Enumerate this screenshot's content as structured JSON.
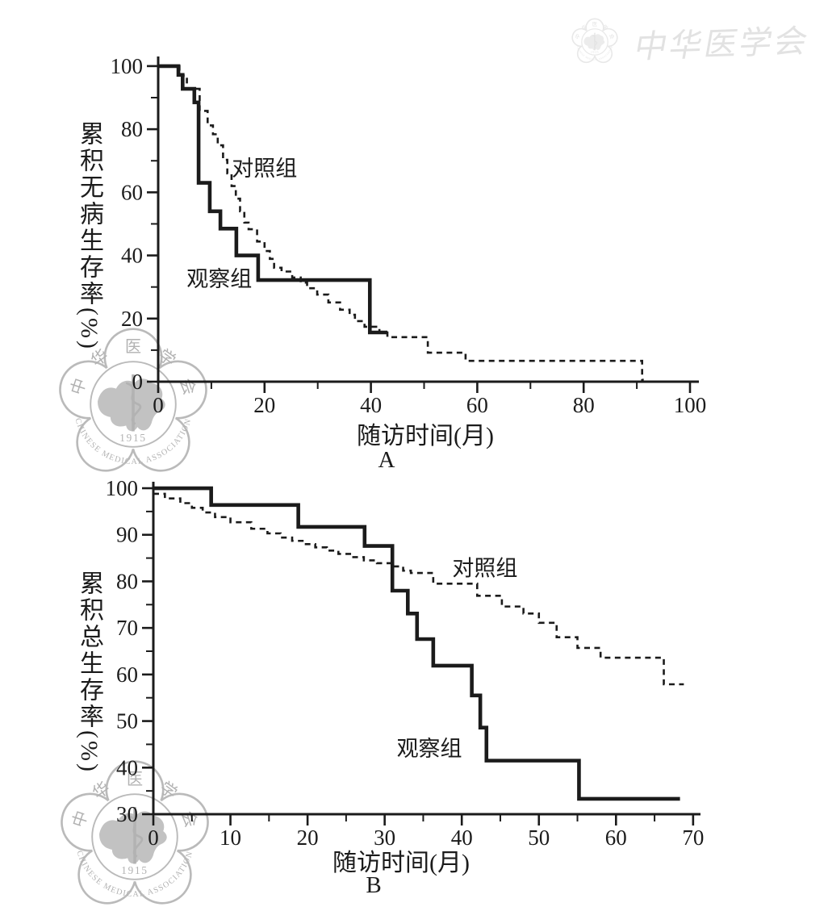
{
  "colors": {
    "ink": "#1b1b1b",
    "watermark_gray_line": "#bababa",
    "watermark_gray_map": "#c2c2c2",
    "watermark_gray_text": "#b2b2b2",
    "watermark_light_line": "#e8e8e8",
    "watermark_light_map": "#ececec",
    "watermark_light_text": "#e3e3e3"
  },
  "watermarks": {
    "calligraphy_text": "中华医学会",
    "seal": {
      "top_text": "中华医学会",
      "year": "1915",
      "bottom_text": "CHINESE MEDICAL ASSOCIATION"
    }
  },
  "chart_data": [
    {
      "type": "line",
      "subtype": "kaplan-meier-step",
      "panel_label": "A",
      "xlabel": "随访时间(月)",
      "ylabel": "累积无病生存率(%)",
      "xlim": [
        0,
        100
      ],
      "ylim": [
        0,
        100
      ],
      "grid": false,
      "x_major_ticks": [
        0,
        20,
        40,
        60,
        80,
        100
      ],
      "x_minor_ticks": [
        10,
        30,
        50,
        70,
        90
      ],
      "y_major_ticks": [
        0,
        20,
        40,
        60,
        80,
        100
      ],
      "y_minor_ticks": [
        10,
        30,
        50,
        70,
        90
      ],
      "series": [
        {
          "name": "对照组",
          "line": "dashed",
          "end_x": 91.3,
          "steps": [
            [
              0,
              100
            ],
            [
              4,
              97
            ],
            [
              5.4,
              92.8
            ],
            [
              7.8,
              85.8
            ],
            [
              9.3,
              81.2
            ],
            [
              10.3,
              78.4
            ],
            [
              11.2,
              74.9
            ],
            [
              12.2,
              70.3
            ],
            [
              13,
              66
            ],
            [
              13.8,
              62
            ],
            [
              14.6,
              58
            ],
            [
              15.4,
              54
            ],
            [
              16.2,
              50.4
            ],
            [
              17,
              48.3
            ],
            [
              18.6,
              44.4
            ],
            [
              20,
              41.4
            ],
            [
              21,
              38.9
            ],
            [
              21.8,
              36.1
            ],
            [
              23.2,
              34.9
            ],
            [
              25.2,
              33
            ],
            [
              26.8,
              31.4
            ],
            [
              28,
              29.6
            ],
            [
              29.9,
              27.6
            ],
            [
              32,
              25.1
            ],
            [
              34.2,
              22.8
            ],
            [
              36,
              21.2
            ],
            [
              37,
              19.2
            ],
            [
              38.8,
              17.4
            ],
            [
              41.6,
              15.6
            ],
            [
              43.1,
              14.1
            ],
            [
              50.7,
              9.2
            ],
            [
              57.8,
              6.6
            ],
            [
              91,
              0.6
            ]
          ]
        },
        {
          "name": "观察组",
          "line": "solid",
          "end_x": 43.1,
          "steps": [
            [
              0,
              100
            ],
            [
              3.8,
              97.2
            ],
            [
              4.6,
              92.8
            ],
            [
              6.8,
              88.5
            ],
            [
              7.6,
              63
            ],
            [
              9.7,
              54
            ],
            [
              11.7,
              48.5
            ],
            [
              14.7,
              40
            ],
            [
              18.8,
              32.2
            ],
            [
              39.8,
              15.6
            ]
          ]
        }
      ],
      "annotations": [
        {
          "text": "对照组",
          "x": 20,
          "y": 67.5
        },
        {
          "text": "观察组",
          "x": 11.5,
          "y": 32.5
        }
      ]
    },
    {
      "type": "line",
      "subtype": "kaplan-meier-step",
      "panel_label": "B",
      "xlabel": "随访时间(月)",
      "ylabel": "累积总生存率(%)",
      "xlim": [
        0,
        70
      ],
      "ylim": [
        30,
        100
      ],
      "grid": false,
      "x_major_ticks": [
        0,
        10,
        20,
        30,
        40,
        50,
        60,
        70
      ],
      "x_minor_ticks": [
        5,
        15,
        25,
        35,
        45,
        55,
        65
      ],
      "y_major_ticks": [
        30,
        40,
        50,
        60,
        70,
        80,
        90,
        100
      ],
      "y_minor_ticks": [
        35,
        45,
        55,
        65,
        75,
        85,
        95
      ],
      "series": [
        {
          "name": "对照组",
          "line": "dashed",
          "end_x": 68.8,
          "steps": [
            [
              0,
              98.8
            ],
            [
              1.5,
              97.8
            ],
            [
              3.5,
              96.8
            ],
            [
              5,
              95.8
            ],
            [
              6.4,
              94.8
            ],
            [
              8,
              93.8
            ],
            [
              10,
              92.7
            ],
            [
              12.7,
              91.3
            ],
            [
              14.8,
              90.3
            ],
            [
              16.5,
              89.4
            ],
            [
              18,
              88.7
            ],
            [
              19.5,
              88
            ],
            [
              21,
              87.3
            ],
            [
              22.5,
              86.6
            ],
            [
              24,
              85.9
            ],
            [
              25.7,
              85.2
            ],
            [
              27.3,
              84.5
            ],
            [
              29,
              83.9
            ],
            [
              31,
              83.2
            ],
            [
              32.4,
              82.3
            ],
            [
              33.4,
              81.8
            ],
            [
              36.3,
              79.5
            ],
            [
              42,
              76.9
            ],
            [
              45.2,
              74.6
            ],
            [
              48,
              73.1
            ],
            [
              50,
              71.1
            ],
            [
              52.3,
              68
            ],
            [
              55,
              65.7
            ],
            [
              58,
              63.6
            ],
            [
              66.2,
              57.9
            ]
          ]
        },
        {
          "name": "观察组",
          "line": "solid",
          "end_x": 68.3,
          "steps": [
            [
              0,
              100
            ],
            [
              7.5,
              96.4
            ],
            [
              18.8,
              91.7
            ],
            [
              27.4,
              87.6
            ],
            [
              31,
              78
            ],
            [
              33,
              73.1
            ],
            [
              34.2,
              67.6
            ],
            [
              36.3,
              61.9
            ],
            [
              41.3,
              55.5
            ],
            [
              42.4,
              48.6
            ],
            [
              43.2,
              41.5
            ],
            [
              55.2,
              33.3
            ]
          ]
        }
      ],
      "annotations": [
        {
          "text": "对照组",
          "x": 43,
          "y": 82.8
        },
        {
          "text": "观察组",
          "x": 35.8,
          "y": 44
        }
      ]
    }
  ]
}
